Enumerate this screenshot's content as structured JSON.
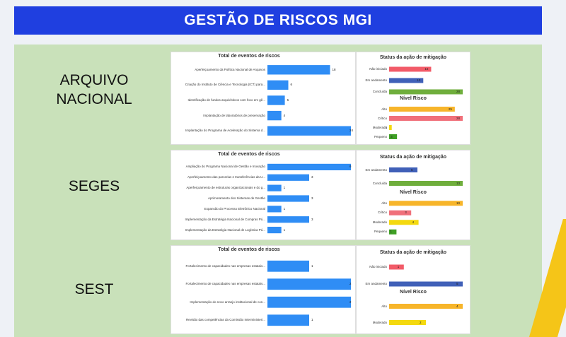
{
  "header": {
    "title": "GESTÃO DE RISCOS MGI"
  },
  "colors": {
    "banner": "#1f3fe0",
    "panel": "#c9e1ba",
    "total_bar": "#2f8df5",
    "nao_iniciado": "#f25b68",
    "em_andamento": "#4060b8",
    "concluida": "#6fae3c",
    "alto": "#f7b52a",
    "critico": "#f0707a",
    "moderado": "#f4d90f",
    "pequeno": "#3f9f25"
  },
  "rows": [
    {
      "label_lines": [
        "ARQUIVO",
        "NACIONAL"
      ],
      "chart_data": [
        {
          "type": "bar",
          "orientation": "horizontal",
          "title": "Total de eventos de riscos",
          "categories": [
            "Aperfeiçoamento da Política Nacional de Arquivos",
            "Criação do Instituto de Ciência e Tecnologia (ICT) para...",
            "Identificação de fundos arquivísticos com foco em gê...",
            "Implantação de laboratórios de preservação",
            "Implantação do Programa de Aceleração do Sistema d..."
          ],
          "values": [
            18,
            6,
            5,
            4,
            24
          ]
        },
        {
          "type": "bar",
          "orientation": "horizontal",
          "title": "Status da ação de mitigação",
          "categories": [
            "Não iniciado",
            "Em andamento",
            "Concluída"
          ],
          "values": [
            16,
            13,
            28
          ],
          "colors": [
            "#f25b68",
            "#4060b8",
            "#6fae3c"
          ]
        },
        {
          "type": "bar",
          "orientation": "horizontal",
          "title": "Nível Risco",
          "categories": [
            "Alto",
            "Crítico",
            "Moderado",
            "Pequeno"
          ],
          "values": [
            25,
            28,
            1,
            3
          ],
          "colors": [
            "#f7b52a",
            "#f0707a",
            "#f4d90f",
            "#3f9f25"
          ]
        }
      ]
    },
    {
      "label_lines": [
        "SEGES"
      ],
      "chart_data": [
        {
          "type": "bar",
          "orientation": "horizontal",
          "title": "Total de eventos de riscos",
          "categories": [
            "Ampliação do Programa Nacional de Gestão e Inovação",
            "Aperfeiçoamento das parcerias e transferências da U...",
            "Aperfeiçoamento de estruturas organizacionais e do g...",
            "Aprimoramento dos Sistemas de Gestão",
            "Expansão do Processo Eletrônico Nacional",
            "Implementação da Estratégia Nacional de Compras Pú...",
            "Implementação da Estratégia Nacional de Logística Pú..."
          ],
          "values": [
            6,
            3,
            1,
            3,
            1,
            3,
            1
          ]
        },
        {
          "type": "bar",
          "orientation": "horizontal",
          "title": "Status da ação de mitigação",
          "categories": [
            "Em andamento",
            "Concluída"
          ],
          "values": [
            5,
            13
          ],
          "colors": [
            "#4060b8",
            "#6fae3c"
          ]
        },
        {
          "type": "bar",
          "orientation": "horizontal",
          "title": "Nível Risco",
          "categories": [
            "Alto",
            "Crítico",
            "Moderado",
            "Pequeno"
          ],
          "values": [
            10,
            3,
            4,
            1
          ],
          "colors": [
            "#f7b52a",
            "#f0707a",
            "#f4d90f",
            "#3f9f25"
          ]
        }
      ]
    },
    {
      "label_lines": [
        "SEST"
      ],
      "chart_data": [
        {
          "type": "bar",
          "orientation": "horizontal",
          "title": "Total de eventos de riscos",
          "categories": [
            "Fortalecimento de capacidades nas empresas estatais...",
            "Fortalecimento de capacidades nas empresas estatais...",
            "Implementação do novo arranjo institucional de con...",
            "Revisão das competências da Comissão Interministeri..."
          ],
          "values": [
            1,
            2,
            2,
            1
          ]
        },
        {
          "type": "bar",
          "orientation": "horizontal",
          "title": "Status da ação de mitigação",
          "categories": [
            "Não iniciado",
            "Em andamento"
          ],
          "values": [
            1,
            5
          ],
          "colors": [
            "#f25b68",
            "#4060b8"
          ]
        },
        {
          "type": "bar",
          "orientation": "horizontal",
          "title": "Nível Risco",
          "categories": [
            "Alto",
            "Moderado"
          ],
          "values": [
            4,
            2
          ],
          "colors": [
            "#f7b52a",
            "#f4d90f"
          ]
        }
      ]
    }
  ]
}
